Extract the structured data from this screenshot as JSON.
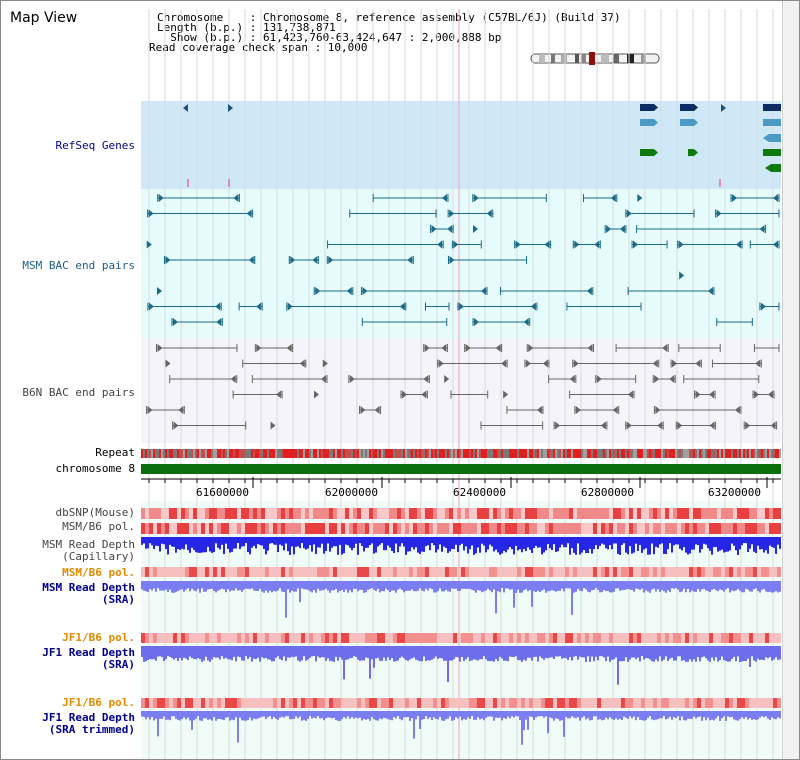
{
  "title": "Map View",
  "info": {
    "chromosome": "Chromosome    : Chromosome 8, reference assembly (C57BL/6J) (Build 37)",
    "length": "Length (b.p.) : 131,738,871",
    "show": "  Show (b.p.) : 61,423,760-63,424,647 : 2,000,888 bp",
    "coverage": "Read coverage check span : 10,000"
  },
  "tracks": {
    "refseq": "RefSeq Genes",
    "msm_bac": "MSM BAC end pairs",
    "b6n_bac": "B6N BAC end pairs",
    "repeat": "Repeat",
    "chrom": "chromosome 8",
    "dbsnp": "dbSNP(Mouse)",
    "msm_b6_pol_1": "MSM/B6 pol.",
    "msm_depth_cap_1": "MSM Read Depth",
    "msm_depth_cap_2": "(Capillary)",
    "msm_b6_pol_2": "MSM/B6 pol.",
    "msm_depth_sra_1": "MSM Read Depth",
    "msm_depth_sra_2": "(SRA)",
    "jf1_pol_1": "JF1/B6 pol.",
    "jf1_depth_sra_1": "JF1 Read Depth",
    "jf1_depth_sra_2": "(SRA)",
    "jf1_pol_2": "JF1/B6 pol.",
    "jf1_depth_trim_1": "JF1 Read Depth",
    "jf1_depth_trim_2": "(SRA trimmed)"
  },
  "axis": {
    "ticks": [
      "61600000",
      "62000000",
      "62400000",
      "62800000",
      "63200000"
    ]
  },
  "colors": {
    "refseq_bg": "#cfe8f7",
    "msm_bg": "#e6fbfb",
    "b6n_bg": "#f4f4fa",
    "chrom_green": "#0a6e0a",
    "depth_blue": "#2a2ae6",
    "depth_light": "#7878f0"
  }
}
